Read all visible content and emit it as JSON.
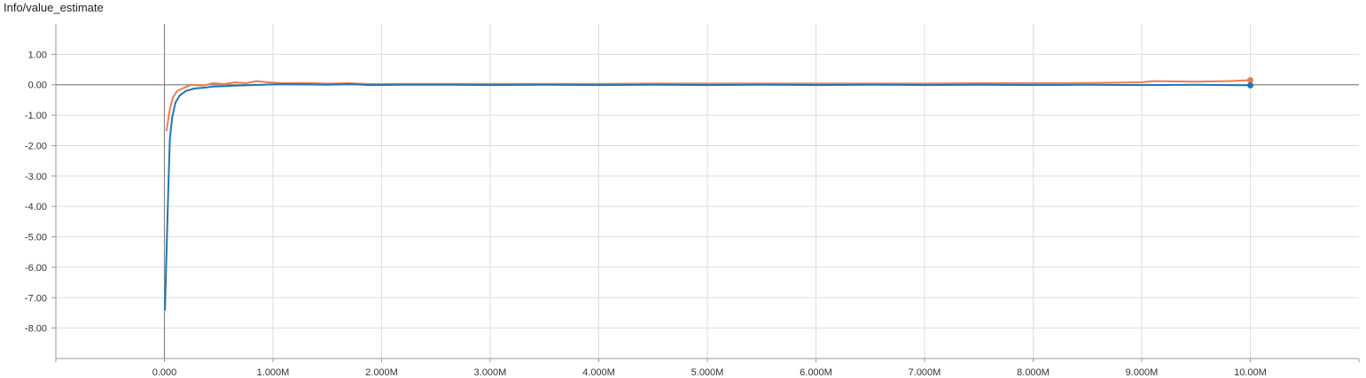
{
  "title": "Info/value_estimate",
  "chart_data": {
    "type": "line",
    "grid": true,
    "xlim": [
      -1000000,
      11000000
    ],
    "ylim": [
      -9,
      2
    ],
    "x_ticks": [
      0,
      1000000,
      2000000,
      3000000,
      4000000,
      5000000,
      6000000,
      7000000,
      8000000,
      9000000,
      10000000
    ],
    "x_tick_labels": [
      "0.000",
      "1.000M",
      "2.000M",
      "3.000M",
      "4.000M",
      "5.000M",
      "6.000M",
      "7.000M",
      "8.000M",
      "9.000M",
      "10.00M"
    ],
    "y_ticks": [
      1,
      0,
      -1,
      -2,
      -3,
      -4,
      -5,
      -6,
      -7,
      -8
    ],
    "y_tick_labels": [
      "1.00",
      "0.00",
      "-1.00",
      "-2.00",
      "-3.00",
      "-4.00",
      "-5.00",
      "-6.00",
      "-7.00",
      "-8.00"
    ],
    "series": [
      {
        "color": "#f07b52",
        "values": [
          [
            20000,
            -1.5
          ],
          [
            50000,
            -0.8
          ],
          [
            80000,
            -0.4
          ],
          [
            120000,
            -0.2
          ],
          [
            180000,
            -0.1
          ],
          [
            250000,
            0.0
          ],
          [
            350000,
            -0.03
          ],
          [
            450000,
            0.05
          ],
          [
            550000,
            0.02
          ],
          [
            650000,
            0.08
          ],
          [
            750000,
            0.05
          ],
          [
            850000,
            0.12
          ],
          [
            950000,
            0.08
          ],
          [
            1100000,
            0.05
          ],
          [
            1300000,
            0.06
          ],
          [
            1500000,
            0.04
          ],
          [
            1700000,
            0.05
          ],
          [
            1900000,
            0.02
          ],
          [
            2200000,
            0.03
          ],
          [
            2500000,
            0.03
          ],
          [
            3000000,
            0.03
          ],
          [
            3500000,
            0.03
          ],
          [
            4000000,
            0.03
          ],
          [
            4500000,
            0.04
          ],
          [
            5000000,
            0.04
          ],
          [
            5500000,
            0.04
          ],
          [
            6000000,
            0.04
          ],
          [
            6500000,
            0.04
          ],
          [
            7000000,
            0.04
          ],
          [
            7500000,
            0.05
          ],
          [
            8000000,
            0.05
          ],
          [
            8500000,
            0.06
          ],
          [
            9000000,
            0.08
          ],
          [
            9100000,
            0.12
          ],
          [
            9500000,
            0.1
          ],
          [
            9800000,
            0.12
          ],
          [
            10000000,
            0.15
          ]
        ]
      },
      {
        "color": "#1f77b4",
        "values": [
          [
            5000,
            -7.4
          ],
          [
            20000,
            -5.5
          ],
          [
            35000,
            -3.5
          ],
          [
            50000,
            -1.8
          ],
          [
            70000,
            -1.1
          ],
          [
            100000,
            -0.6
          ],
          [
            140000,
            -0.35
          ],
          [
            200000,
            -0.2
          ],
          [
            280000,
            -0.12
          ],
          [
            350000,
            -0.1
          ],
          [
            450000,
            -0.06
          ],
          [
            550000,
            -0.05
          ],
          [
            650000,
            -0.03
          ],
          [
            750000,
            -0.02
          ],
          [
            900000,
            0.0
          ],
          [
            1100000,
            0.02
          ],
          [
            1300000,
            0.01
          ],
          [
            1500000,
            0.0
          ],
          [
            1700000,
            0.02
          ],
          [
            1900000,
            -0.01
          ],
          [
            2200000,
            0.0
          ],
          [
            2500000,
            0.0
          ],
          [
            3000000,
            -0.01
          ],
          [
            3500000,
            0.0
          ],
          [
            4000000,
            -0.01
          ],
          [
            4500000,
            0.0
          ],
          [
            5000000,
            -0.01
          ],
          [
            5500000,
            0.0
          ],
          [
            6000000,
            -0.01
          ],
          [
            6500000,
            0.0
          ],
          [
            7000000,
            -0.01
          ],
          [
            7500000,
            0.0
          ],
          [
            8000000,
            -0.01
          ],
          [
            8500000,
            0.0
          ],
          [
            9000000,
            -0.01
          ],
          [
            9500000,
            0.0
          ],
          [
            10000000,
            -0.02
          ]
        ]
      }
    ]
  }
}
